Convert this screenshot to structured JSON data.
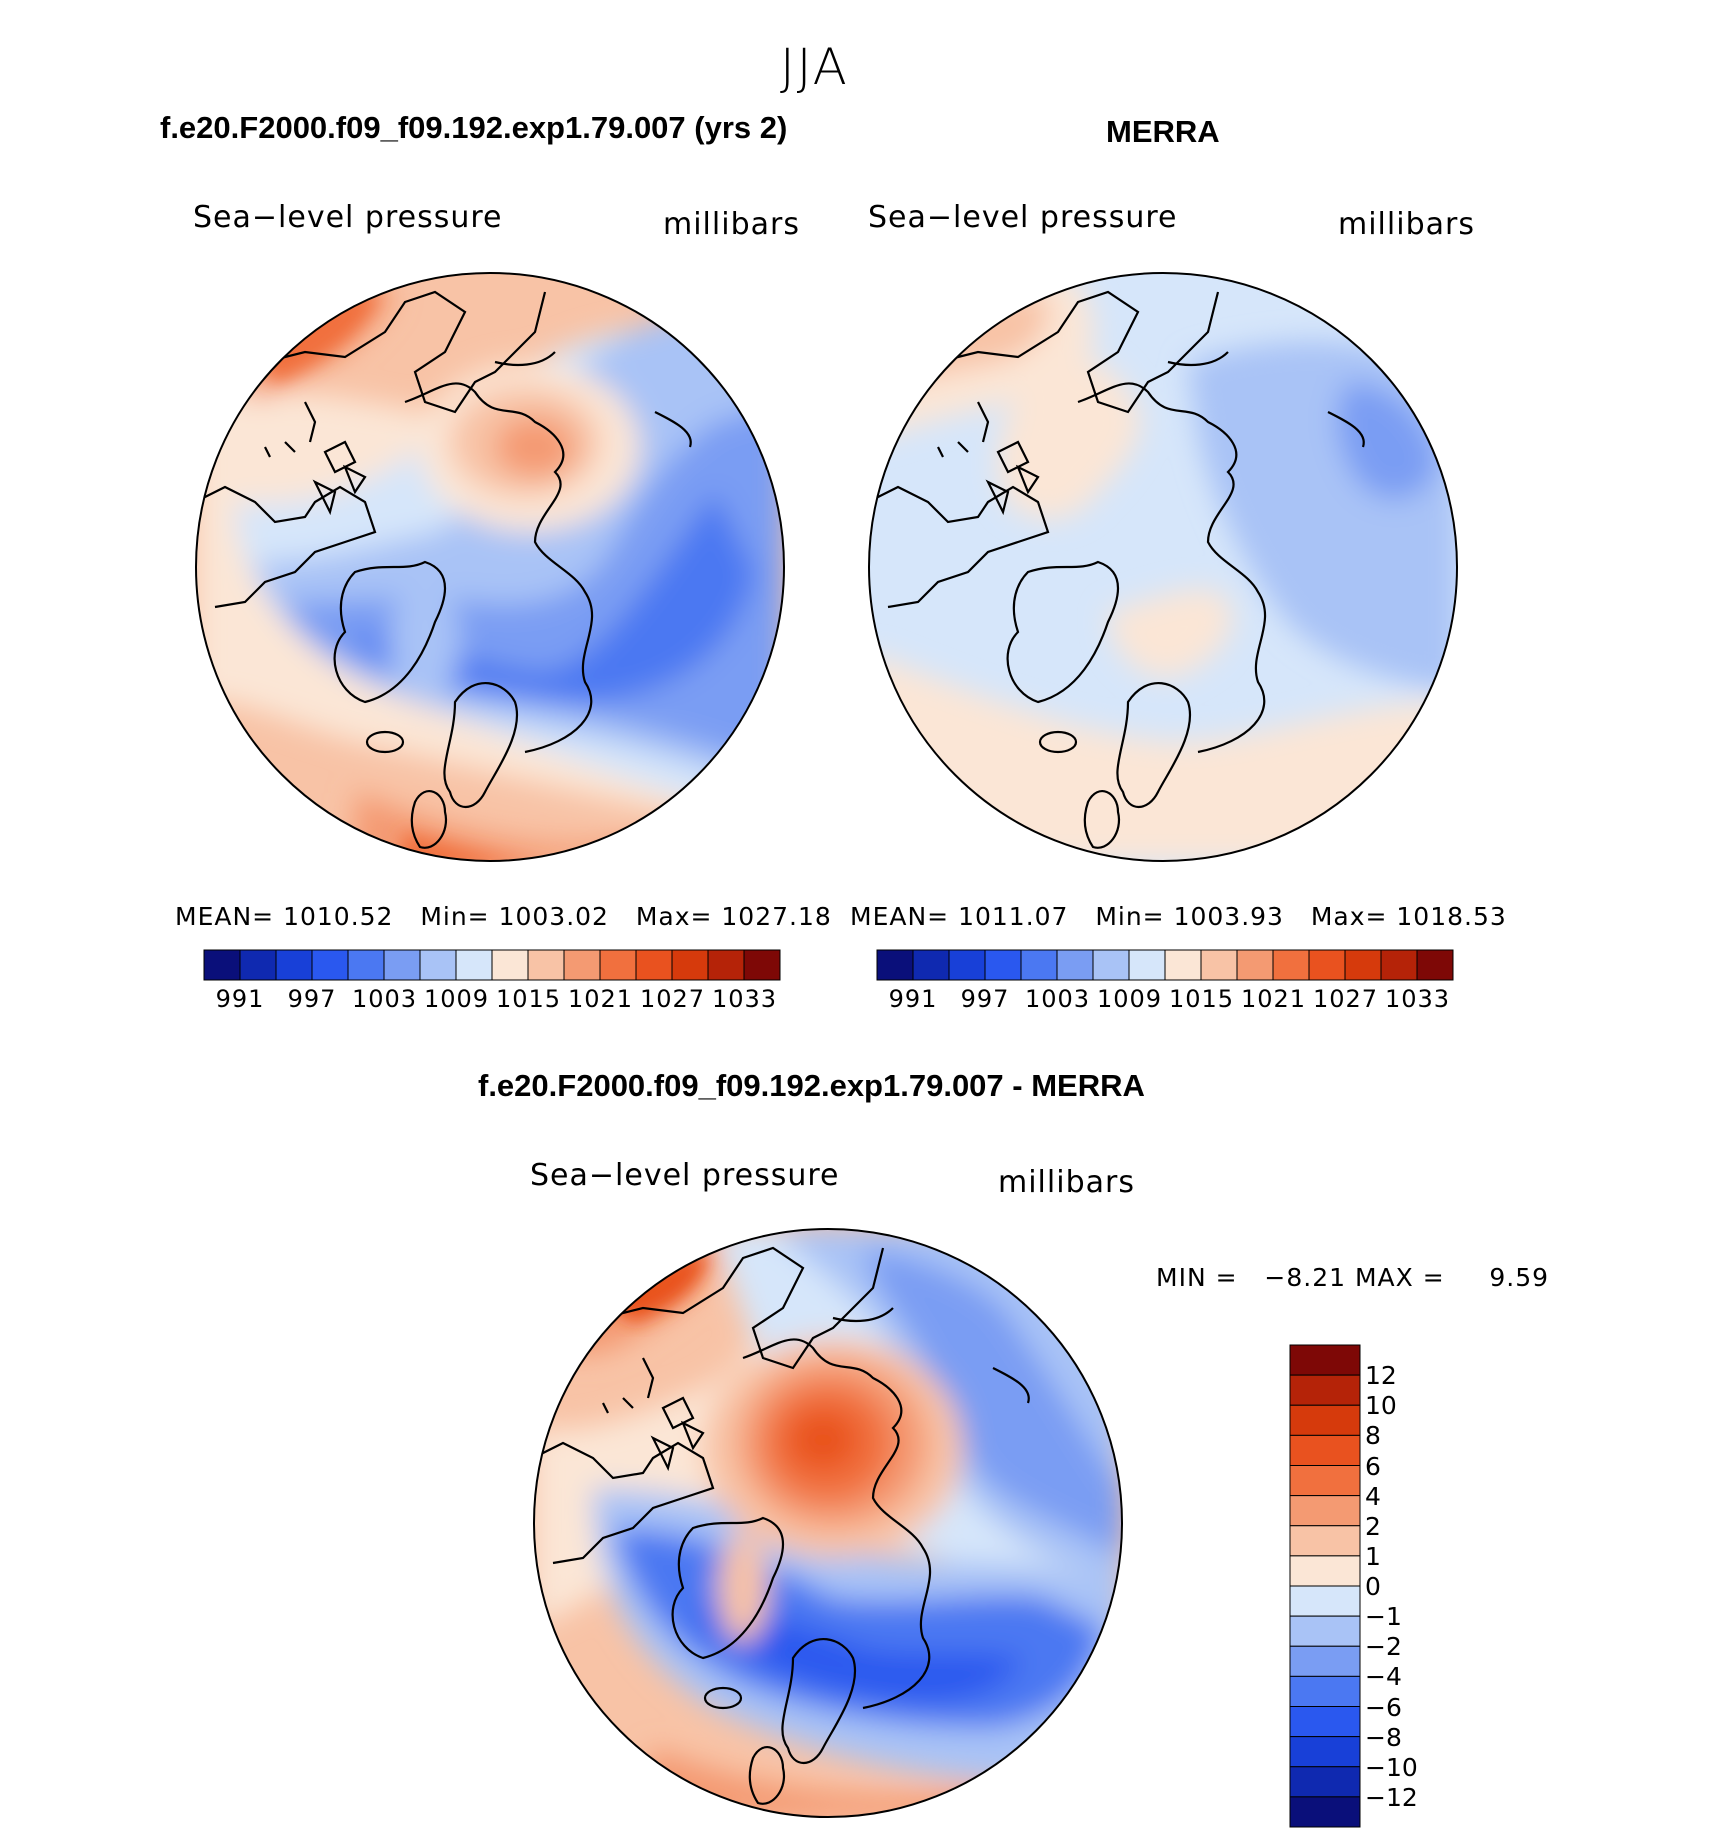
{
  "season": "JJA",
  "top_left": {
    "title": "f.e20.F2000.f09_f09.192.exp1.79.007 (yrs 2)",
    "variable": "Sea−level pressure",
    "units": "millibars",
    "stats": {
      "mean_label": "MEAN=",
      "mean": "1010.52",
      "min_label": "Min=",
      "min": "1003.02",
      "max_label": "Max=",
      "max": "1027.18"
    }
  },
  "top_right": {
    "title": "MERRA",
    "variable": "Sea−level pressure",
    "units": "millibars",
    "stats": {
      "mean_label": "MEAN=",
      "mean": "1011.07",
      "min_label": "Min=",
      "min": "1003.93",
      "max_label": "Max=",
      "max": "1018.53"
    }
  },
  "bottom": {
    "title": "f.e20.F2000.f09_f09.192.exp1.79.007 - MERRA",
    "variable": "Sea−level pressure",
    "units": "millibars",
    "min_label": "MIN =",
    "min": "−8.21",
    "max_label": "MAX =",
    "max": "9.59"
  },
  "abs_colorbar": {
    "labels": [
      "991",
      "997",
      "1003",
      "1009",
      "1015",
      "1021",
      "1027",
      "1033"
    ],
    "colors": [
      "#0a0f7a",
      "#0f29b0",
      "#1840d8",
      "#2a58ef",
      "#4b78f2",
      "#7a9df3",
      "#a9c3f6",
      "#d6e6fa",
      "#fbe6d6",
      "#f8c3a6",
      "#f49a72",
      "#f1703e",
      "#e9521f",
      "#d63a0c",
      "#b52308",
      "#7e0806"
    ]
  },
  "diff_colorbar": {
    "labels": [
      "12",
      "10",
      "8",
      "6",
      "4",
      "2",
      "1",
      "0",
      "−1",
      "−2",
      "−4",
      "−6",
      "−8",
      "−10",
      "−12"
    ],
    "colors": [
      "#7e0806",
      "#b52308",
      "#d63a0c",
      "#e9521f",
      "#f1703e",
      "#f49a72",
      "#f8c3a6",
      "#fbe6d6",
      "#d6e6fa",
      "#a9c3f6",
      "#7a9df3",
      "#4b78f2",
      "#2a58ef",
      "#1840d8",
      "#0f29b0",
      "#0a0f7a"
    ]
  },
  "colors": {
    "coast": "#000000",
    "background": "#ffffff"
  }
}
